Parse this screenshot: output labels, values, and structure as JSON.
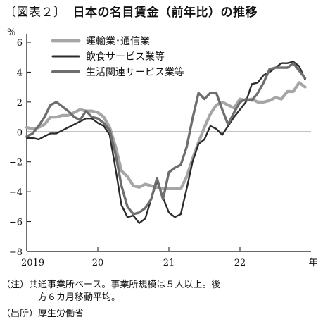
{
  "figure": {
    "label": "〔図表２〕",
    "title": "日本の名目賃金（前年比）の推移"
  },
  "footnotes": {
    "note_label": "（注）",
    "note_line1": "共通事業所ベース。事業所規模は５人以上。後",
    "note_line2": "方６カ月移動平均。",
    "source_label": "（出所）",
    "source_text": "厚生労働省"
  },
  "colors": {
    "series_1": "#a6a6a6",
    "series_2": "#2b2b2b",
    "series_3": "#6e6e6e"
  },
  "chart_data": {
    "type": "line",
    "ylabel": "%",
    "xlabel": "年",
    "ylim": [
      -8,
      6
    ],
    "yticks": [
      -8,
      -6,
      -4,
      -2,
      0,
      2,
      4,
      6
    ],
    "ytick_labels": [
      "−8",
      "−6",
      "−4",
      "−2",
      "0",
      "2",
      "4",
      "6"
    ],
    "xlim": [
      2019.0,
      2023.0
    ],
    "xticks": [
      2019,
      2020,
      2021,
      2022
    ],
    "xtick_labels": [
      "2019",
      "20",
      "21",
      "22"
    ],
    "legend_position": "top-left",
    "grid": false,
    "series": [
      {
        "name": "運輸業･通信業",
        "x": [
          2019.0,
          2019.083,
          2019.167,
          2019.25,
          2019.333,
          2019.417,
          2019.5,
          2019.583,
          2019.667,
          2019.75,
          2019.833,
          2019.917,
          2020.0,
          2020.083,
          2020.167,
          2020.25,
          2020.333,
          2020.417,
          2020.5,
          2020.583,
          2020.667,
          2020.75,
          2020.833,
          2020.917,
          2021.0,
          2021.083,
          2021.167,
          2021.25,
          2021.333,
          2021.417,
          2021.5,
          2021.583,
          2021.667,
          2021.75,
          2021.833,
          2021.917,
          2022.0,
          2022.083,
          2022.167,
          2022.25,
          2022.333,
          2022.417,
          2022.5,
          2022.583,
          2022.667,
          2022.75,
          2022.833,
          2022.917
        ],
        "values": [
          0.3,
          0.2,
          0.3,
          0.5,
          1.0,
          1.0,
          1.1,
          1.1,
          1.3,
          1.5,
          1.4,
          1.4,
          1.3,
          1.0,
          0.3,
          -1.0,
          -2.6,
          -3.0,
          -3.6,
          -3.7,
          -3.5,
          -3.6,
          -3.7,
          -3.8,
          -3.8,
          -3.8,
          -3.8,
          -3.0,
          -1.8,
          -0.7,
          0.3,
          1.2,
          1.8,
          2.0,
          1.8,
          1.6,
          2.2,
          2.1,
          2.2,
          2.0,
          2.0,
          2.1,
          2.3,
          2.2,
          2.7,
          2.7,
          3.3,
          3.0
        ]
      },
      {
        "name": "飲食サービス業等",
        "x": [
          2019.0,
          2019.083,
          2019.167,
          2019.25,
          2019.333,
          2019.417,
          2019.5,
          2019.583,
          2019.667,
          2019.75,
          2019.833,
          2019.917,
          2020.0,
          2020.083,
          2020.167,
          2020.25,
          2020.333,
          2020.417,
          2020.5,
          2020.583,
          2020.667,
          2020.75,
          2020.833,
          2020.917,
          2021.0,
          2021.083,
          2021.167,
          2021.25,
          2021.333,
          2021.417,
          2021.5,
          2021.583,
          2021.667,
          2021.75,
          2021.833,
          2021.917,
          2022.0,
          2022.083,
          2022.167,
          2022.25,
          2022.333,
          2022.417,
          2022.5,
          2022.583,
          2022.667,
          2022.75,
          2022.833,
          2022.917
        ],
        "values": [
          -0.4,
          -0.4,
          -0.5,
          -0.3,
          -0.1,
          -0.1,
          0.1,
          0.3,
          0.5,
          0.7,
          0.9,
          0.9,
          0.6,
          0.4,
          -0.2,
          -2.5,
          -4.9,
          -5.7,
          -5.6,
          -6.1,
          -5.8,
          -4.5,
          -3.3,
          -4.4,
          -5.4,
          -5.7,
          -5.5,
          -3.8,
          -2.0,
          -0.8,
          -0.5,
          0.4,
          0.2,
          -0.2,
          0.4,
          1.0,
          1.5,
          2.0,
          3.2,
          3.3,
          3.8,
          4.0,
          4.3,
          4.6,
          4.6,
          4.7,
          4.4,
          3.5
        ]
      },
      {
        "name": "生活関連サービス業等",
        "x": [
          2019.0,
          2019.083,
          2019.167,
          2019.25,
          2019.333,
          2019.417,
          2019.5,
          2019.583,
          2019.667,
          2019.75,
          2019.833,
          2019.917,
          2020.0,
          2020.083,
          2020.167,
          2020.25,
          2020.333,
          2020.417,
          2020.5,
          2020.583,
          2020.667,
          2020.75,
          2020.833,
          2020.917,
          2021.0,
          2021.083,
          2021.167,
          2021.25,
          2021.333,
          2021.417,
          2021.5,
          2021.583,
          2021.667,
          2021.75,
          2021.833,
          2021.917,
          2022.0,
          2022.083,
          2022.167,
          2022.25,
          2022.333,
          2022.417,
          2022.5,
          2022.583,
          2022.667,
          2022.75,
          2022.833,
          2022.917
        ],
        "values": [
          -0.3,
          -0.1,
          0.4,
          1.0,
          1.8,
          2.0,
          1.7,
          1.4,
          1.0,
          0.8,
          1.4,
          1.0,
          0.9,
          0.6,
          0.1,
          -1.5,
          -3.6,
          -5.0,
          -5.5,
          -5.4,
          -5.1,
          -4.5,
          -3.1,
          -4.5,
          -2.7,
          -2.4,
          -2.2,
          -1.0,
          0.9,
          2.6,
          2.2,
          2.6,
          2.6,
          1.5,
          0.5,
          1.3,
          2.0,
          2.2,
          2.1,
          2.6,
          3.3,
          4.2,
          4.3,
          4.3,
          4.3,
          4.6,
          4.1,
          3.6
        ]
      }
    ]
  }
}
